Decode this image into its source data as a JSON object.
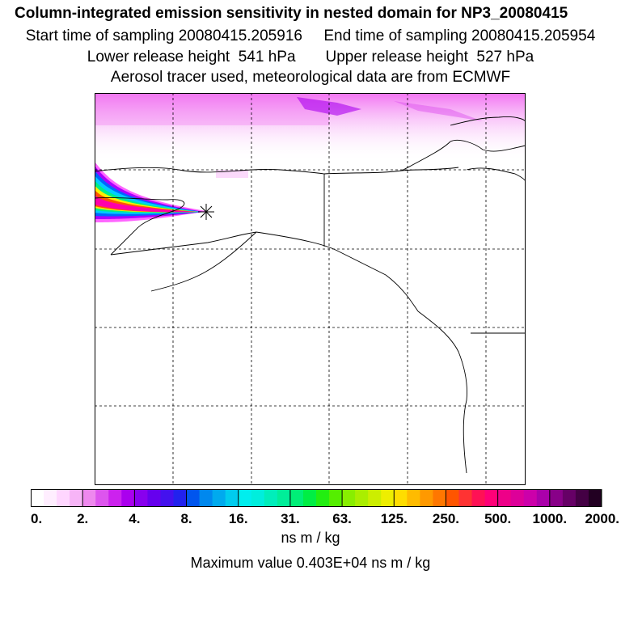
{
  "titles": {
    "line1": "Column-integrated emission sensitivity in nested domain for NP3_20080415",
    "line2": "Start time of sampling 20080415.205916     End time of sampling 20080415.205954",
    "line3": "Lower release height  541 hPa       Upper release height  527 hPa",
    "line4": "Aerosol tracer used, meteorological data are from ECMWF"
  },
  "colorbar": {
    "tick_labels": [
      "0.",
      "2.",
      "4.",
      "8.",
      "16.",
      "31.",
      "63.",
      "125.",
      "250.",
      "500.",
      "1000.",
      "2000."
    ],
    "colors": [
      "#ffffff",
      "#ffeeff",
      "#ffd6ff",
      "#f7b4f7",
      "#ee88ee",
      "#dd55ee",
      "#cc22ee",
      "#aa00ee",
      "#8800ee",
      "#6600ee",
      "#4411ee",
      "#2222ee",
      "#0055ee",
      "#0088ee",
      "#00aaee",
      "#00ccee",
      "#00eeee",
      "#00eedd",
      "#00eebb",
      "#00ee99",
      "#00ee77",
      "#00ee44",
      "#22ee11",
      "#55ee00",
      "#88ee00",
      "#aaee00",
      "#ccee00",
      "#eeee00",
      "#ffdd00",
      "#ffbb00",
      "#ff9900",
      "#ff7700",
      "#ff5500",
      "#ff3333",
      "#ff1155",
      "#ff0077",
      "#ee0088",
      "#dd0099",
      "#cc00aa",
      "#aa00aa",
      "#880088",
      "#660066",
      "#440044",
      "#220022"
    ],
    "units": "ns m / kg"
  },
  "max_value_text": "Maximum value  0.403E+04 ns m / kg",
  "map": {
    "release_marker": "asterisk-marker",
    "plume_colors": [
      "#ff00aa",
      "#ff2277",
      "#ff5500",
      "#ffee00",
      "#00ee88",
      "#00ccff",
      "#0066ff",
      "#aa00ff",
      "#ff66ff"
    ],
    "background_sensitivity_color": "#ee66ee"
  }
}
